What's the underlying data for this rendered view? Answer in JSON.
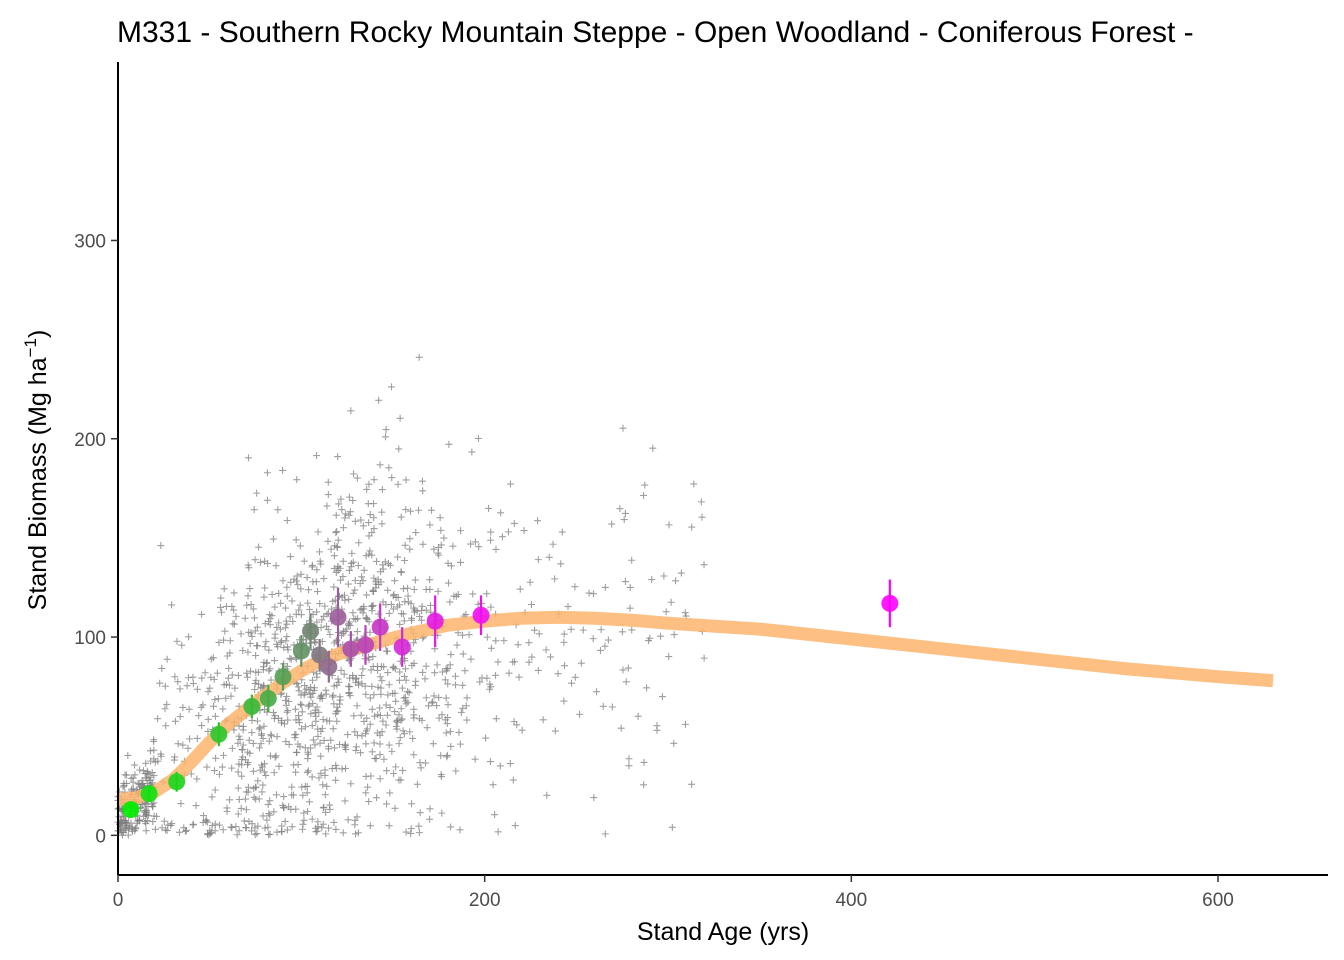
{
  "chart_data": {
    "type": "scatter",
    "title": "M331 - Southern Rocky Mountain Steppe - Open Woodland - Coniferous Forest -",
    "xlabel": "Stand Age (yrs)",
    "ylabel_main": "Stand Biomass (Mg ha",
    "ylabel_sup": "−1",
    "ylabel_close": ")",
    "xlim": [
      0,
      660
    ],
    "ylim": [
      -20,
      390
    ],
    "x_ticks": [
      0,
      200,
      400,
      600
    ],
    "x_tick_labels": [
      "0",
      "200",
      "400",
      "600"
    ],
    "y_ticks": [
      0,
      100,
      200,
      300
    ],
    "y_tick_labels": [
      "0",
      "100",
      "200",
      "300"
    ],
    "grid": false,
    "legend": "none",
    "colors": {
      "raw_points": "#7f7f7f",
      "fit_curve": "#fdb46c",
      "binned_start": "#00ee00",
      "binned_end": "#ff00ff"
    },
    "raw_points_note": "plot-level observations shown as grey crosses",
    "raw_points_count": 1500,
    "fit_curve": {
      "x": [
        0,
        10,
        20,
        30,
        40,
        50,
        60,
        75,
        90,
        100,
        110,
        125,
        140,
        160,
        180,
        200,
        220,
        240,
        260,
        280,
        300,
        350,
        400,
        450,
        500,
        550,
        600,
        630
      ],
      "y": [
        18,
        19,
        22,
        28,
        37,
        47,
        56,
        67,
        77,
        83,
        88,
        93,
        97,
        102,
        106,
        108,
        109.5,
        110,
        109.5,
        108.5,
        107,
        104,
        99,
        94,
        89,
        84,
        80,
        78
      ]
    },
    "binned_means": [
      {
        "x": 7,
        "y": 13,
        "err": 4
      },
      {
        "x": 17,
        "y": 21,
        "err": 4
      },
      {
        "x": 32,
        "y": 27,
        "err": 5
      },
      {
        "x": 55,
        "y": 51,
        "err": 6
      },
      {
        "x": 73,
        "y": 65,
        "err": 6
      },
      {
        "x": 82,
        "y": 69,
        "err": 7
      },
      {
        "x": 90,
        "y": 80,
        "err": 7
      },
      {
        "x": 100,
        "y": 93,
        "err": 8
      },
      {
        "x": 105,
        "y": 103,
        "err": 9
      },
      {
        "x": 110,
        "y": 91,
        "err": 8
      },
      {
        "x": 115,
        "y": 85,
        "err": 8
      },
      {
        "x": 120,
        "y": 110,
        "err": 15
      },
      {
        "x": 127,
        "y": 94,
        "err": 9
      },
      {
        "x": 135,
        "y": 96,
        "err": 10
      },
      {
        "x": 143,
        "y": 105,
        "err": 12
      },
      {
        "x": 155,
        "y": 95,
        "err": 10
      },
      {
        "x": 173,
        "y": 108,
        "err": 13
      },
      {
        "x": 198,
        "y": 111,
        "err": 10
      },
      {
        "x": 421,
        "y": 117,
        "err": 12
      }
    ]
  }
}
